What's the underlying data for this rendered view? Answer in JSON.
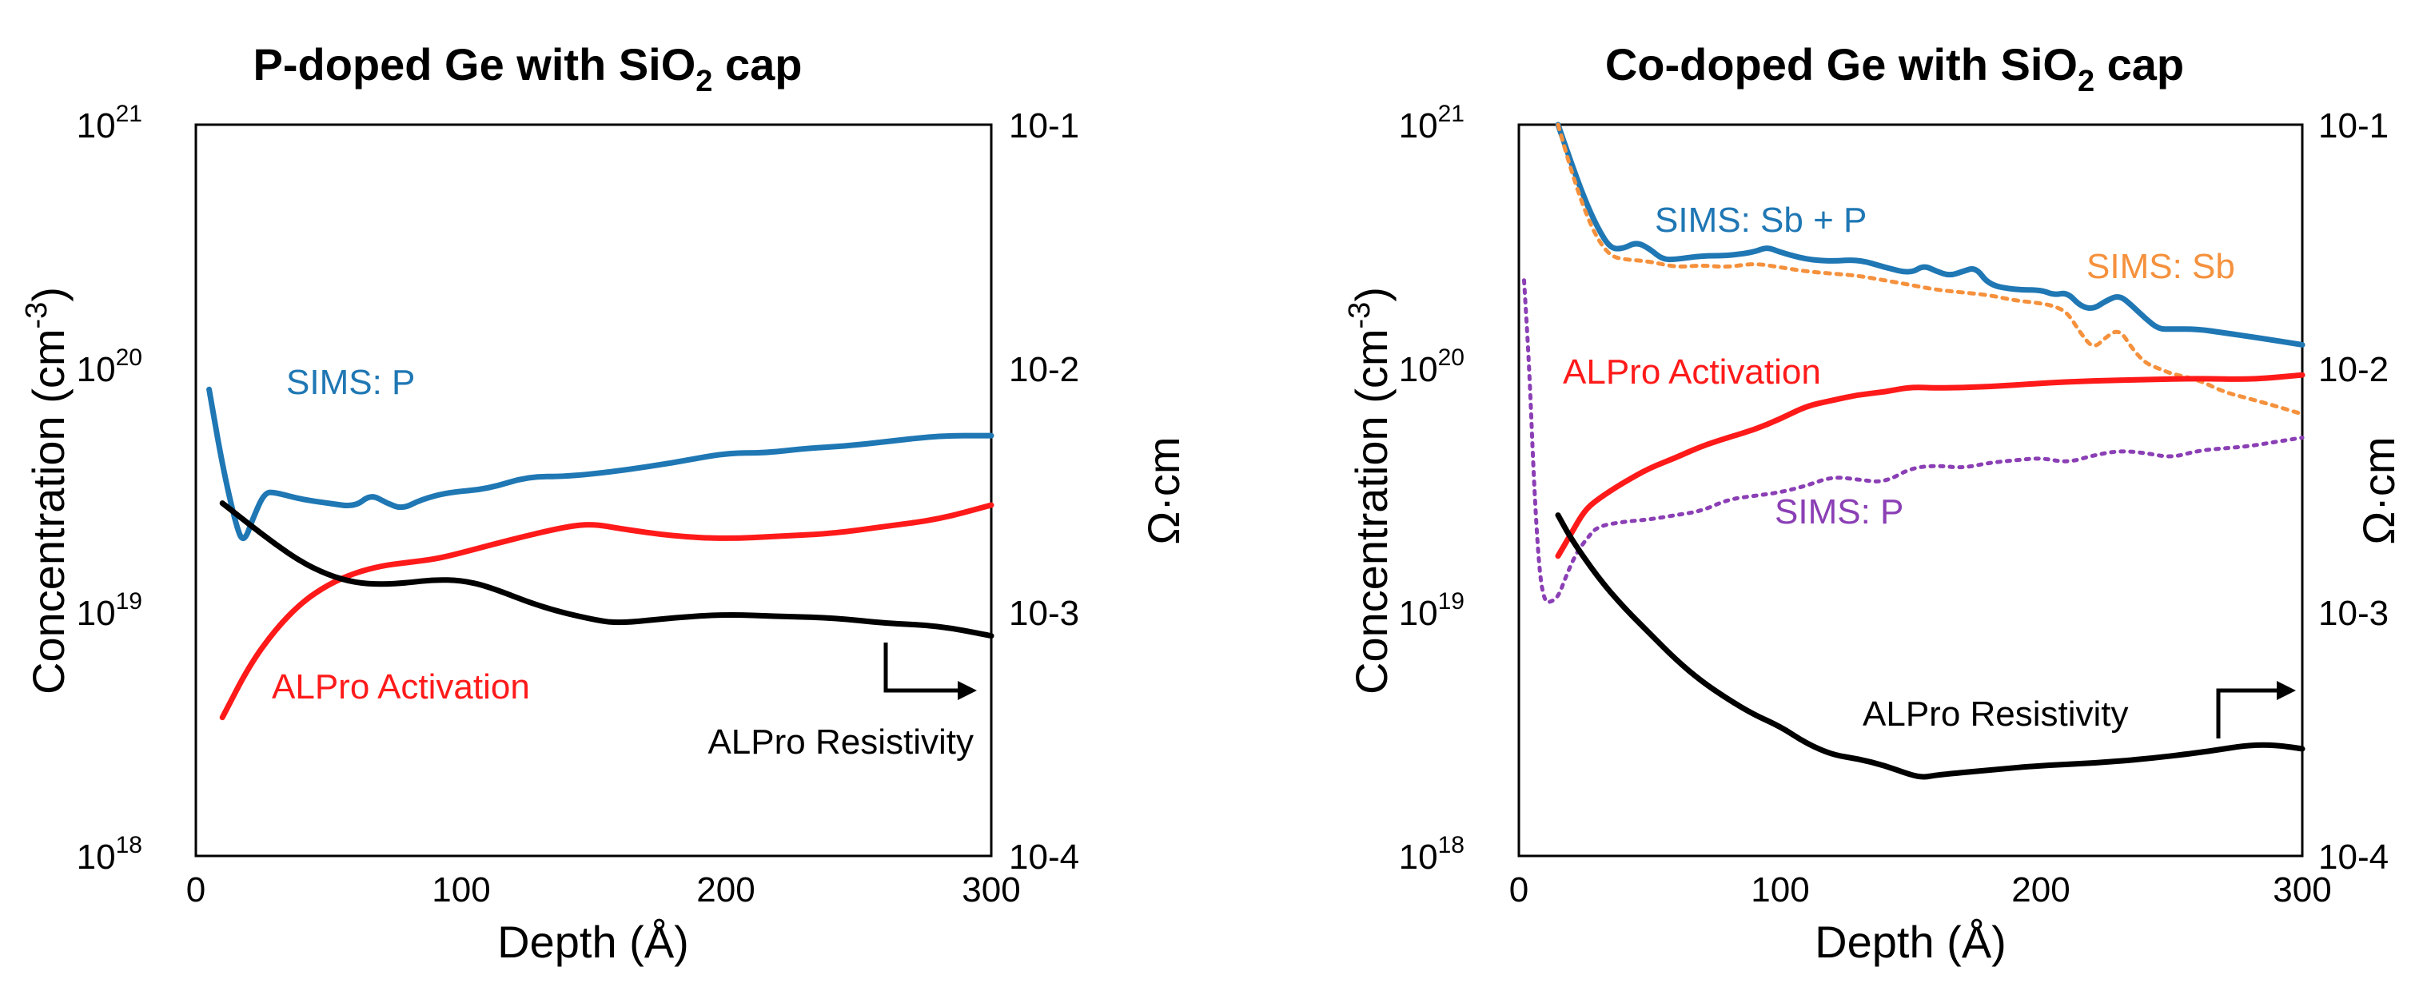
{
  "chart_data": [
    {
      "type": "line",
      "title_main": "P-doped Ge with SiO",
      "title_sub": "2",
      "title_tail": " cap",
      "xlabel": "Depth (Å)",
      "ylabel_main": "Concentration (cm",
      "ylabel_sup": "-3",
      "ylabel_tail": ")",
      "y2label": "Ω·cm",
      "xlim": [
        0,
        300
      ],
      "xticks": [
        "0",
        "100",
        "200",
        "300"
      ],
      "ylim_log10": [
        18,
        21
      ],
      "yticks": [
        {
          "base": "10",
          "exp": "18"
        },
        {
          "base": "10",
          "exp": "19"
        },
        {
          "base": "10",
          "exp": "20"
        },
        {
          "base": "10",
          "exp": "21"
        }
      ],
      "y2lim_log10": [
        -4,
        -1
      ],
      "y2ticks": [
        "10-4",
        "10-3",
        "10-2",
        "10-1"
      ],
      "series": [
        {
          "name": "SIMS: P",
          "axis": "left",
          "color": "#1f77b4",
          "dash": "",
          "x": [
            5,
            10,
            15,
            18,
            22,
            26,
            30,
            40,
            50,
            60,
            66,
            72,
            78,
            85,
            95,
            110,
            125,
            140,
            160,
            180,
            200,
            215,
            230,
            245,
            260,
            280,
            300
          ],
          "y": [
            8.2e+19,
            4e+19,
            2.3e+19,
            1.9e+19,
            2.5e+19,
            3.1e+19,
            3.1e+19,
            2.9e+19,
            2.8e+19,
            2.7e+19,
            3.05e+19,
            2.8e+19,
            2.65e+19,
            2.9e+19,
            3.1e+19,
            3.2e+19,
            3.6e+19,
            3.6e+19,
            3.8e+19,
            4.1e+19,
            4.5e+19,
            4.5e+19,
            4.7e+19,
            4.8e+19,
            5e+19,
            5.3e+19,
            5.3e+19
          ]
        },
        {
          "name": "ALPro Activation",
          "axis": "left",
          "color": "#ff1a1a",
          "dash": "",
          "x": [
            10,
            20,
            30,
            40,
            50,
            60,
            70,
            80,
            90,
            100,
            120,
            140,
            150,
            160,
            180,
            200,
            220,
            240,
            260,
            280,
            300
          ],
          "y": [
            3.7e+18,
            6e+18,
            8.5e+18,
            1.1e+19,
            1.3e+19,
            1.45e+19,
            1.55e+19,
            1.6e+19,
            1.65e+19,
            1.75e+19,
            2e+19,
            2.25e+19,
            2.3e+19,
            2.2e+19,
            2.05e+19,
            2e+19,
            2.05e+19,
            2.1e+19,
            2.25e+19,
            2.4e+19,
            2.75e+19
          ]
        },
        {
          "name": "ALPro Resistivity",
          "axis": "right",
          "color": "#000000",
          "dash": "",
          "x": [
            10,
            20,
            30,
            40,
            50,
            60,
            70,
            80,
            90,
            100,
            110,
            130,
            150,
            160,
            180,
            200,
            220,
            240,
            260,
            280,
            300
          ],
          "y": [
            0.0028,
            0.0023,
            0.0019,
            0.0016,
            0.00142,
            0.00132,
            0.0013,
            0.00132,
            0.00136,
            0.00135,
            0.00128,
            0.00105,
            0.00093,
            0.0009,
            0.00095,
            0.00098,
            0.00096,
            0.00095,
            0.0009,
            0.00088,
            0.0008
          ]
        }
      ],
      "annotations": [
        "SIMS: P",
        "ALPro Activation",
        "ALPro Resistivity"
      ]
    },
    {
      "type": "line",
      "title_main": "Co-doped Ge with SiO",
      "title_sub": "2",
      "title_tail": " cap",
      "xlabel": "Depth (Å)",
      "ylabel_main": "Concentration (cm",
      "ylabel_sup": "-3",
      "ylabel_tail": ")",
      "y2label": "Ω·cm",
      "xlim": [
        0,
        300
      ],
      "xticks": [
        "0",
        "100",
        "200",
        "300"
      ],
      "ylim_log10": [
        18,
        21
      ],
      "yticks": [
        {
          "base": "10",
          "exp": "18"
        },
        {
          "base": "10",
          "exp": "19"
        },
        {
          "base": "10",
          "exp": "20"
        },
        {
          "base": "10",
          "exp": "21"
        }
      ],
      "y2lim_log10": [
        -4,
        -1
      ],
      "y2ticks": [
        "10-4",
        "10-3",
        "10-2",
        "10-1"
      ],
      "series": [
        {
          "name": "SIMS: Sb + P",
          "axis": "left",
          "color": "#1f77b4",
          "dash": "",
          "x": [
            15,
            20,
            25,
            30,
            35,
            40,
            45,
            50,
            55,
            60,
            70,
            80,
            90,
            95,
            100,
            110,
            120,
            130,
            140,
            150,
            155,
            160,
            165,
            170,
            175,
            180,
            190,
            200,
            205,
            210,
            215,
            220,
            225,
            230,
            235,
            240,
            245,
            250,
            260,
            270,
            280,
            290,
            300
          ],
          "y": [
            1e+21,
            7e+20,
            5e+20,
            3.8e+20,
            3.1e+20,
            3.1e+20,
            3.3e+20,
            3.1e+20,
            2.8e+20,
            2.8e+20,
            2.9e+20,
            2.9e+20,
            3e+20,
            3.15e+20,
            3e+20,
            2.8e+20,
            2.75e+20,
            2.8e+20,
            2.6e+20,
            2.45e+20,
            2.65e+20,
            2.5e+20,
            2.4e+20,
            2.5e+20,
            2.6e+20,
            2.2e+20,
            2.1e+20,
            2.1e+20,
            2e+20,
            2.05e+20,
            1.8e+20,
            1.75e+20,
            1.9e+20,
            2e+20,
            1.8e+20,
            1.6e+20,
            1.45e+20,
            1.45e+20,
            1.45e+20,
            1.4e+20,
            1.35e+20,
            1.3e+20,
            1.25e+20
          ]
        },
        {
          "name": "SIMS: Sb",
          "axis": "left",
          "color": "#f5913d",
          "dash": "6 8",
          "x": [
            15,
            20,
            25,
            30,
            35,
            40,
            50,
            60,
            70,
            80,
            90,
            100,
            110,
            120,
            130,
            140,
            150,
            160,
            170,
            180,
            190,
            200,
            205,
            210,
            215,
            220,
            225,
            230,
            235,
            240,
            245,
            250,
            260,
            270,
            280,
            290,
            300
          ],
          "y": [
            1e+21,
            6.5e+20,
            4.5e+20,
            3.4e+20,
            2.9e+20,
            2.8e+20,
            2.75e+20,
            2.6e+20,
            2.65e+20,
            2.6e+20,
            2.7e+20,
            2.6e+20,
            2.5e+20,
            2.45e+20,
            2.4e+20,
            2.3e+20,
            2.2e+20,
            2.1e+20,
            2.05e+20,
            2e+20,
            1.9e+20,
            1.85e+20,
            1.8e+20,
            1.7e+20,
            1.4e+20,
            1.2e+20,
            1.35e+20,
            1.45e+20,
            1.2e+20,
            1.05e+20,
            1e+20,
            9.5e+19,
            9e+19,
            8e+19,
            7.5e+19,
            7e+19,
            6.5e+19
          ]
        },
        {
          "name": "SIMS: P",
          "axis": "left",
          "color": "#8b3fb5",
          "dash": "4 8",
          "x": [
            2,
            4,
            6,
            8,
            10,
            12,
            15,
            18,
            22,
            26,
            30,
            40,
            50,
            60,
            70,
            80,
            90,
            100,
            110,
            120,
            130,
            140,
            150,
            160,
            170,
            180,
            190,
            200,
            210,
            220,
            230,
            240,
            250,
            260,
            270,
            280,
            290,
            300
          ],
          "y": [
            2.3e+20,
            1e+20,
            3e+19,
            1.4e+19,
            1.1e+19,
            1.1e+19,
            1.15e+19,
            1.4e+19,
            1.75e+19,
            2e+19,
            2.25e+19,
            2.35e+19,
            2.4e+19,
            2.5e+19,
            2.6e+19,
            2.9e+19,
            3e+19,
            3.1e+19,
            3.3e+19,
            3.6e+19,
            3.5e+19,
            3.4e+19,
            3.9e+19,
            4e+19,
            3.9e+19,
            4.1e+19,
            4.2e+19,
            4.3e+19,
            4.1e+19,
            4.4e+19,
            4.6e+19,
            4.5e+19,
            4.3e+19,
            4.6e+19,
            4.7e+19,
            4.8e+19,
            5e+19,
            5.2e+19
          ]
        },
        {
          "name": "ALPro Activation",
          "axis": "left",
          "color": "#ff1a1a",
          "dash": "",
          "x": [
            15,
            20,
            25,
            30,
            40,
            50,
            60,
            70,
            80,
            90,
            100,
            110,
            120,
            130,
            140,
            150,
            160,
            180,
            200,
            220,
            240,
            260,
            280,
            300
          ],
          "y": [
            1.7e+19,
            2.1e+19,
            2.6e+19,
            2.9e+19,
            3.4e+19,
            3.9e+19,
            4.3e+19,
            4.8e+19,
            5.2e+19,
            5.6e+19,
            6.2e+19,
            7e+19,
            7.4e+19,
            7.8e+19,
            8e+19,
            8.4e+19,
            8.3e+19,
            8.4e+19,
            8.7e+19,
            8.9e+19,
            9e+19,
            9.1e+19,
            9e+19,
            9.4e+19
          ]
        },
        {
          "name": "ALPro Resistivity",
          "axis": "right",
          "color": "#000000",
          "dash": "",
          "x": [
            15,
            20,
            30,
            40,
            50,
            60,
            70,
            80,
            90,
            100,
            110,
            120,
            130,
            140,
            150,
            155,
            160,
            180,
            200,
            220,
            240,
            260,
            270,
            280,
            290,
            300
          ],
          "y": [
            0.0025,
            0.002,
            0.0014,
            0.00105,
            0.00082,
            0.00064,
            0.00052,
            0.00044,
            0.00038,
            0.00034,
            0.00029,
            0.00026,
            0.00025,
            0.000235,
            0.000215,
            0.00021,
            0.000215,
            0.000225,
            0.000235,
            0.00024,
            0.00025,
            0.000265,
            0.000275,
            0.000285,
            0.000285,
            0.000275
          ]
        }
      ],
      "annotations": [
        "SIMS: Sb + P",
        "SIMS: Sb",
        "ALPro Activation",
        "SIMS: P",
        "ALPro Resistivity"
      ]
    }
  ]
}
